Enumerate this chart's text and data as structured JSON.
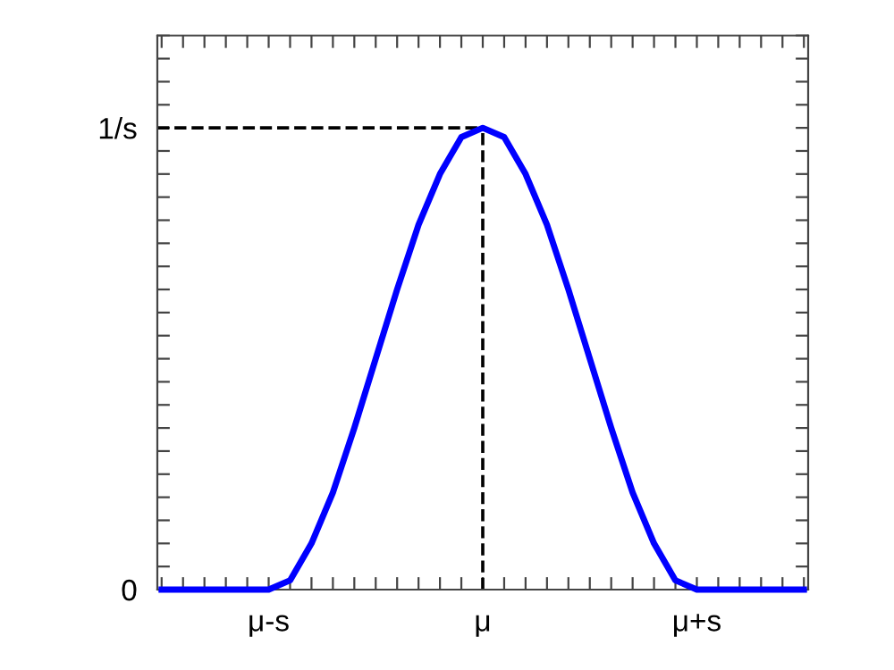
{
  "chart_data": {
    "type": "line",
    "categories": [
      null,
      null,
      null,
      null,
      null,
      "μ-s",
      null,
      null,
      null,
      null,
      null,
      null,
      null,
      null,
      null,
      "μ",
      null,
      null,
      null,
      null,
      null,
      null,
      null,
      null,
      null,
      "μ+s",
      null,
      null,
      null,
      null,
      null
    ],
    "series": [
      {
        "color": "#0000ff",
        "values": [
          0,
          0,
          0,
          0,
          0,
          0,
          0.02,
          0.1,
          0.21,
          0.35,
          0.5,
          0.65,
          0.79,
          0.9,
          0.98,
          1.0,
          0.98,
          0.9,
          0.79,
          0.65,
          0.5,
          0.35,
          0.21,
          0.1,
          0.02,
          0,
          0,
          0,
          0,
          0,
          0
        ]
      }
    ],
    "ylim": [
      0,
      1.2
    ],
    "yticks": [
      0,
      {
        "value": 0.05,
        "label": null
      },
      {
        "value": 0.1,
        "label": null
      },
      {
        "value": 0.15,
        "label": null
      },
      {
        "value": 0.2,
        "label": null
      },
      {
        "value": 0.25,
        "label": null
      },
      {
        "value": 0.3,
        "label": null
      },
      {
        "value": 0.35,
        "label": null
      },
      {
        "value": 0.4,
        "label": null
      },
      {
        "value": 0.45,
        "label": null
      },
      {
        "value": 0.5,
        "label": null
      },
      {
        "value": 0.55,
        "label": null
      },
      {
        "value": 0.6,
        "label": null
      },
      {
        "value": 0.65,
        "label": null
      },
      {
        "value": 0.7,
        "label": null
      },
      {
        "value": 0.75,
        "label": null
      },
      {
        "value": 0.8,
        "label": null
      },
      {
        "value": 0.85,
        "label": null
      },
      {
        "value": 0.9,
        "label": null
      },
      {
        "value": 0.95,
        "label": null
      },
      {
        "value": 1,
        "label": "1/s"
      },
      {
        "value": 1.05,
        "label": null
      },
      {
        "value": 1.1,
        "label": null
      },
      {
        "value": 1.15,
        "label": null
      },
      {
        "value": 1.2,
        "label": null
      }
    ],
    "ref_lines": [
      {
        "axis": "y",
        "value": 1,
        "color": "#000000",
        "line_style": "dashed"
      },
      {
        "axis": "x",
        "value": "μ",
        "color": "#000000",
        "line_style": "dashed"
      }
    ],
    "marker": "none",
    "line_style": "solid",
    "grid": false
  }
}
